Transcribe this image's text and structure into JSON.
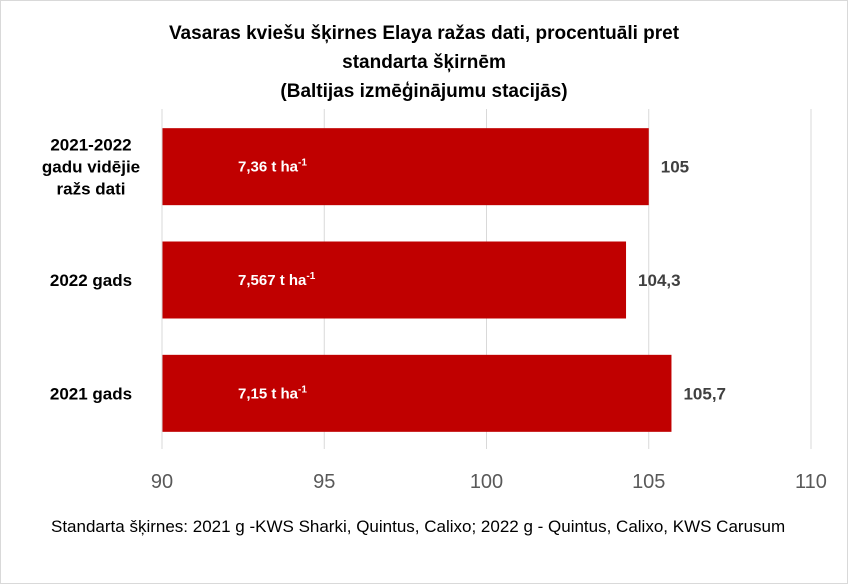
{
  "chart_data": {
    "type": "bar",
    "orientation": "horizontal",
    "title_lines": [
      "Vasaras kviešu šķirnes Elaya ražas dati, procentuāli pret",
      "standarta šķirnēm",
      "(Baltijas izmēģinājumu stacijās)"
    ],
    "categories": [
      [
        "2021-2022",
        "gadu vidējie",
        "ražs dati"
      ],
      [
        "2022 gads"
      ],
      [
        "2021 gads"
      ]
    ],
    "values": [
      105,
      104.3,
      105.7
    ],
    "value_labels": [
      "105",
      "104,3",
      "105,7"
    ],
    "inner_labels": [
      {
        "text": "7,36 t ha",
        "sup": "-1"
      },
      {
        "text": "7,567 t ha",
        "sup": "-1"
      },
      {
        "text": "7,15 t ha",
        "sup": "-1"
      }
    ],
    "xlim": [
      90,
      110
    ],
    "xticks": [
      90,
      95,
      100,
      105,
      110
    ],
    "grid": true,
    "bar_color": "#c00000",
    "footnote": "Standarta šķirnes: 2021 g -KWS Sharki, Quintus, Calixo; 2022 g - Quintus, Calixo, KWS Carusum"
  }
}
